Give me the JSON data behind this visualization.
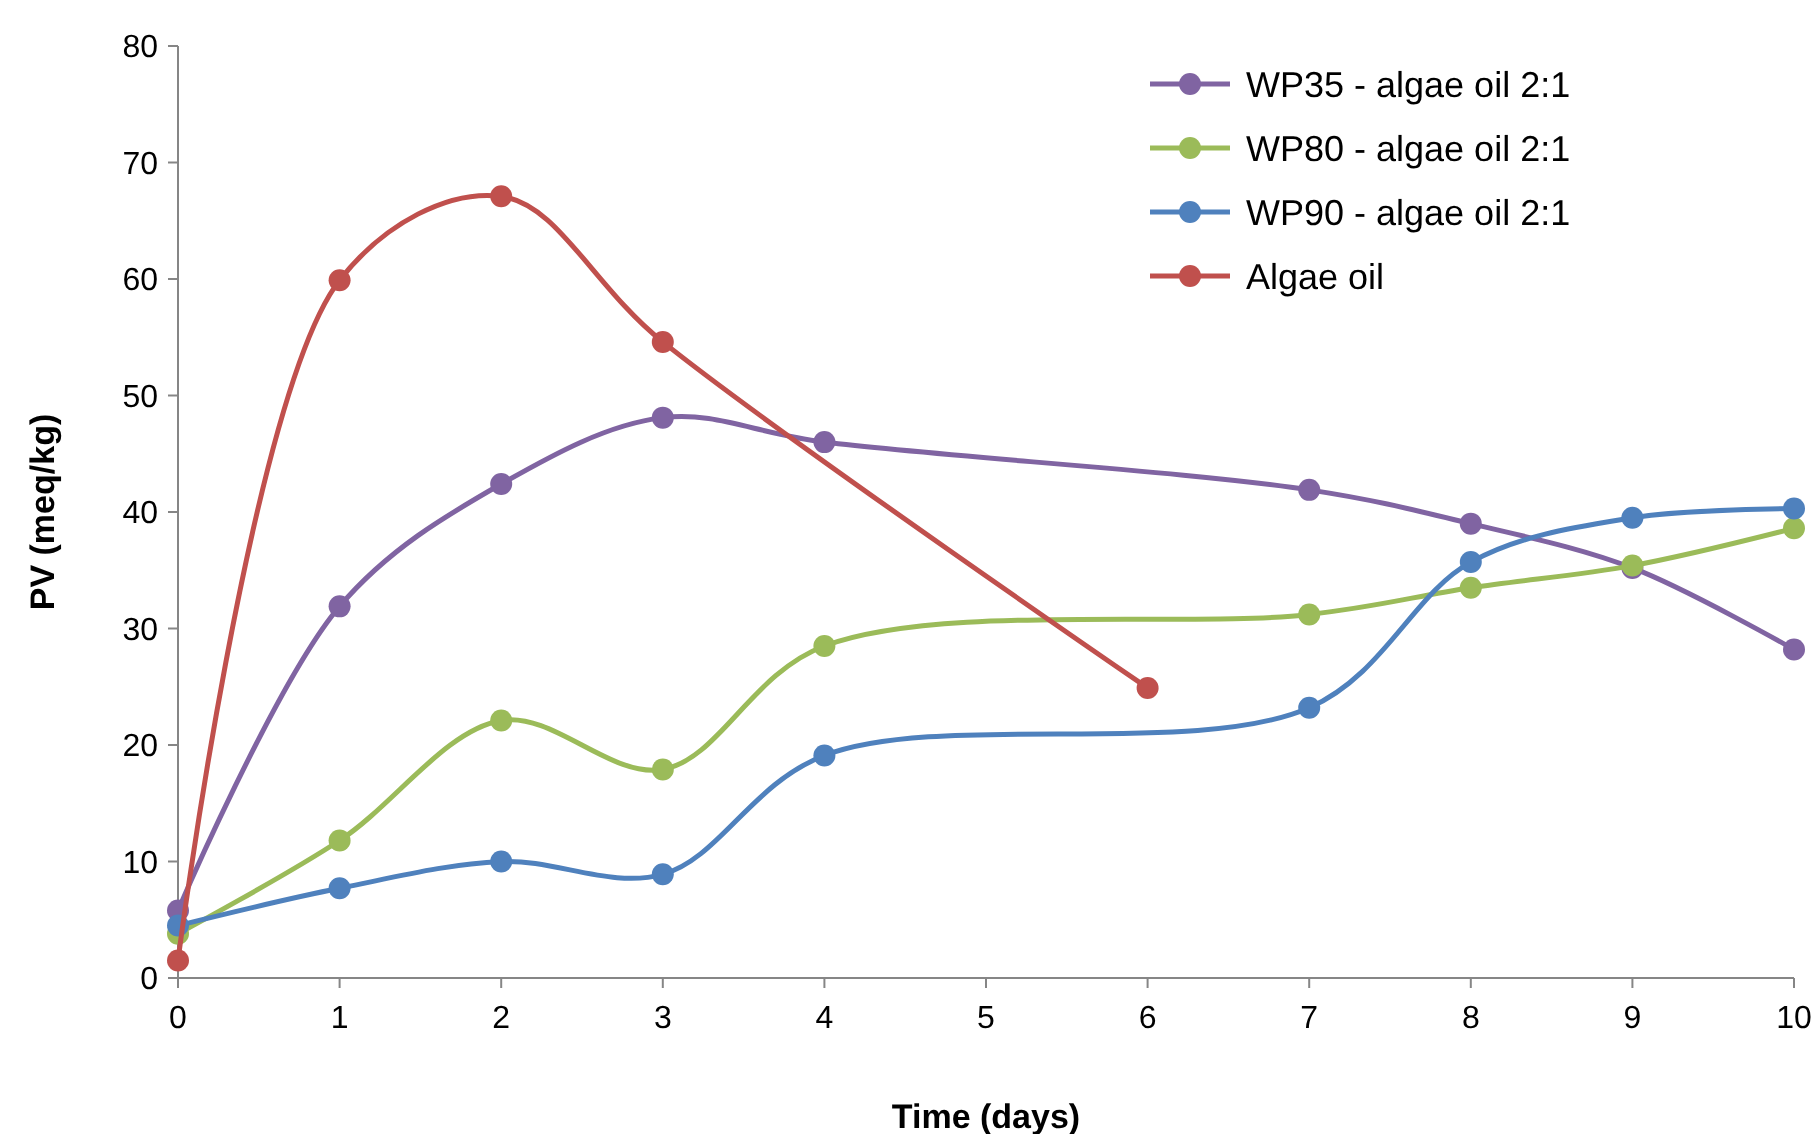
{
  "chart_data": {
    "type": "line",
    "xlabel": "Time (days)",
    "ylabel": "PV (meq/kg)",
    "xlim": [
      0,
      10
    ],
    "xticks": [
      0,
      1,
      2,
      3,
      4,
      5,
      6,
      7,
      8,
      9,
      10
    ],
    "ylim": [
      0,
      80
    ],
    "yticks": [
      0,
      10,
      20,
      30,
      40,
      50,
      60,
      70,
      80
    ],
    "grid": false,
    "legend": "top right",
    "marker": "circle",
    "line_style": "solid",
    "series": [
      {
        "name": "WP35 - algae oil 2:1",
        "color": "#8064a2",
        "x": [
          0,
          1,
          2,
          3,
          4,
          7,
          8,
          9,
          10
        ],
        "values": [
          5.8,
          31.9,
          42.4,
          48.1,
          46.0,
          41.9,
          39.0,
          35.2,
          28.2
        ]
      },
      {
        "name": "WP80 - algae oil 2:1",
        "color": "#9bbb59",
        "x": [
          0,
          1,
          2,
          3,
          4,
          7,
          8,
          9,
          10
        ],
        "values": [
          3.8,
          11.8,
          22.1,
          17.9,
          28.5,
          31.2,
          33.5,
          35.4,
          38.6
        ]
      },
      {
        "name": "WP90 - algae oil 2:1",
        "color": "#4f81bd",
        "x": [
          0,
          1,
          2,
          3,
          4,
          7,
          8,
          9,
          10
        ],
        "values": [
          4.5,
          7.7,
          10.0,
          8.9,
          19.1,
          23.2,
          35.7,
          39.5,
          40.3
        ]
      },
      {
        "name": "Algae oil",
        "color": "#c0504d",
        "x": [
          0,
          1,
          2,
          3,
          6
        ],
        "values": [
          1.5,
          59.9,
          67.1,
          54.6,
          24.9
        ]
      }
    ]
  }
}
